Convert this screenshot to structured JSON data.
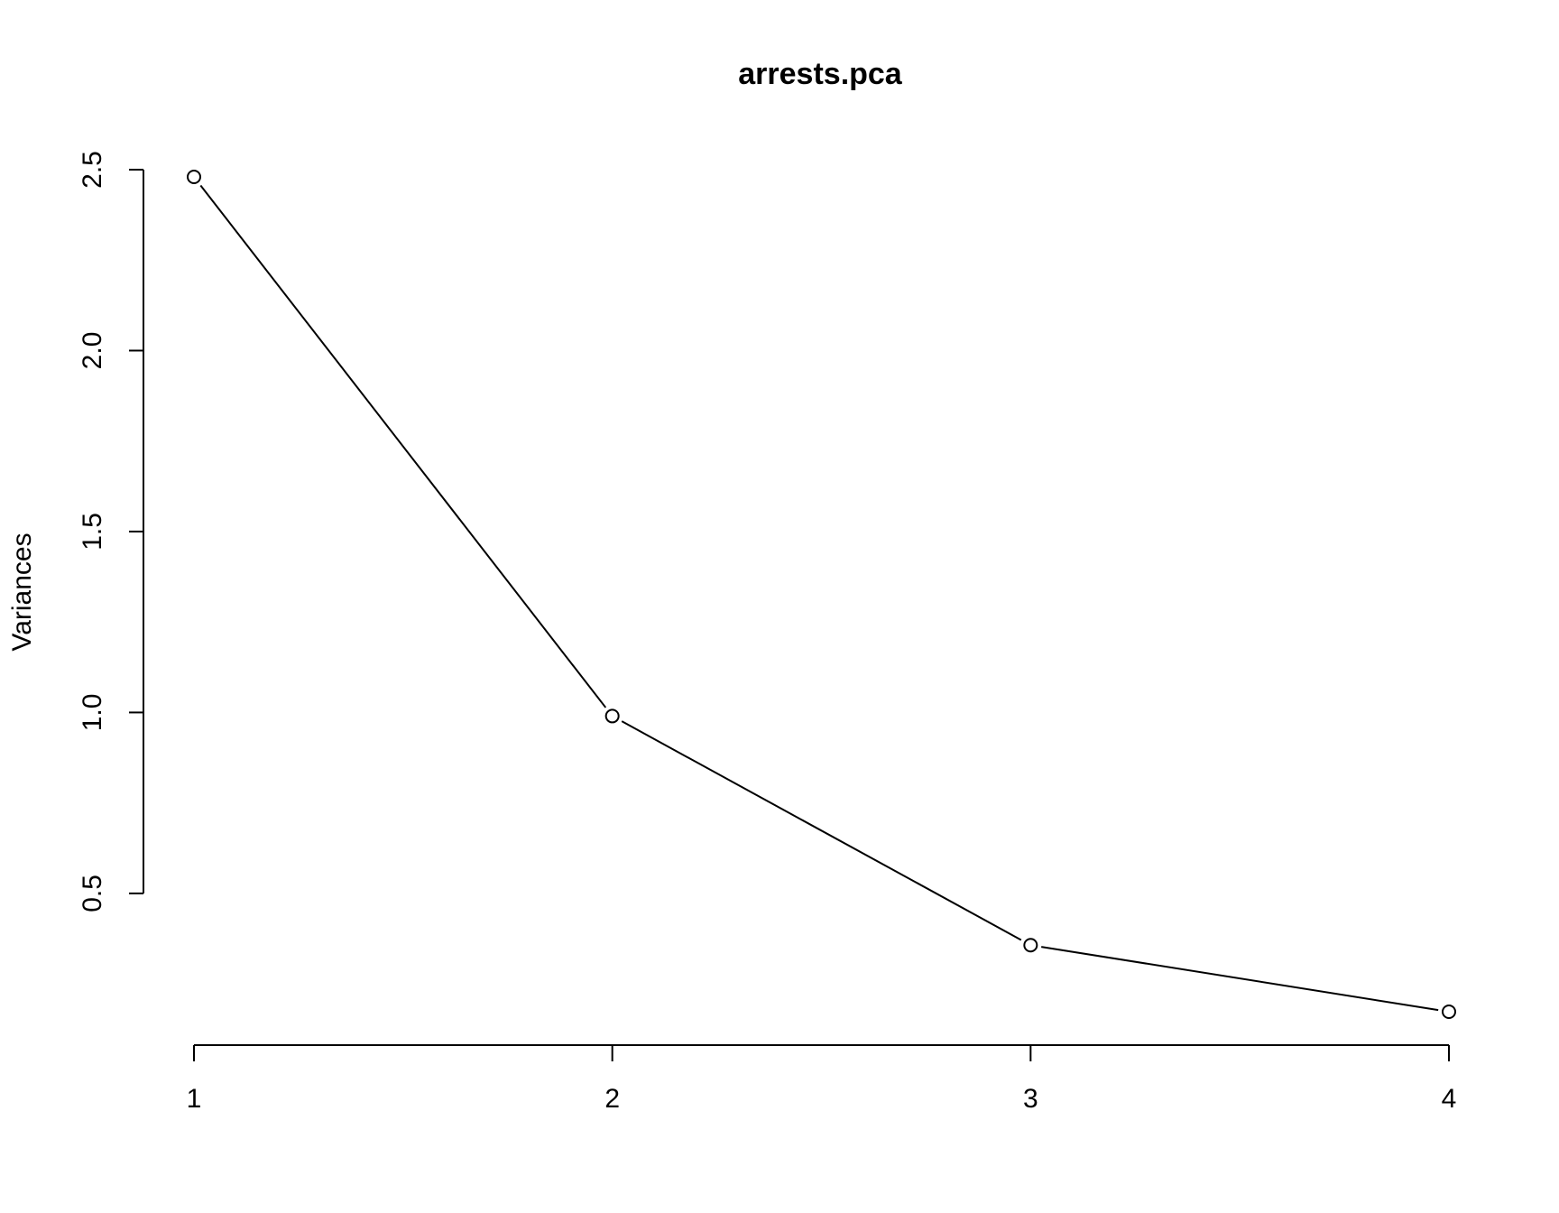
{
  "chart_data": {
    "type": "line",
    "title": "arrests.pca",
    "xlabel": "",
    "ylabel": "Variances",
    "x": [
      1,
      2,
      3,
      4
    ],
    "values": [
      2.48,
      0.99,
      0.357,
      0.173
    ],
    "x_ticks": [
      "1",
      "2",
      "3",
      "4"
    ],
    "y_ticks": [
      "0.5",
      "1.0",
      "1.5",
      "2.0",
      "2.5"
    ],
    "y_tick_values": [
      0.5,
      1.0,
      1.5,
      2.0,
      2.5
    ],
    "xlim": [
      1,
      4
    ],
    "ylim": [
      0.173,
      2.48
    ],
    "markers": "open-circle",
    "grid": false,
    "legend": "none",
    "colors": {
      "line": "#000000",
      "background": "#ffffff"
    }
  }
}
